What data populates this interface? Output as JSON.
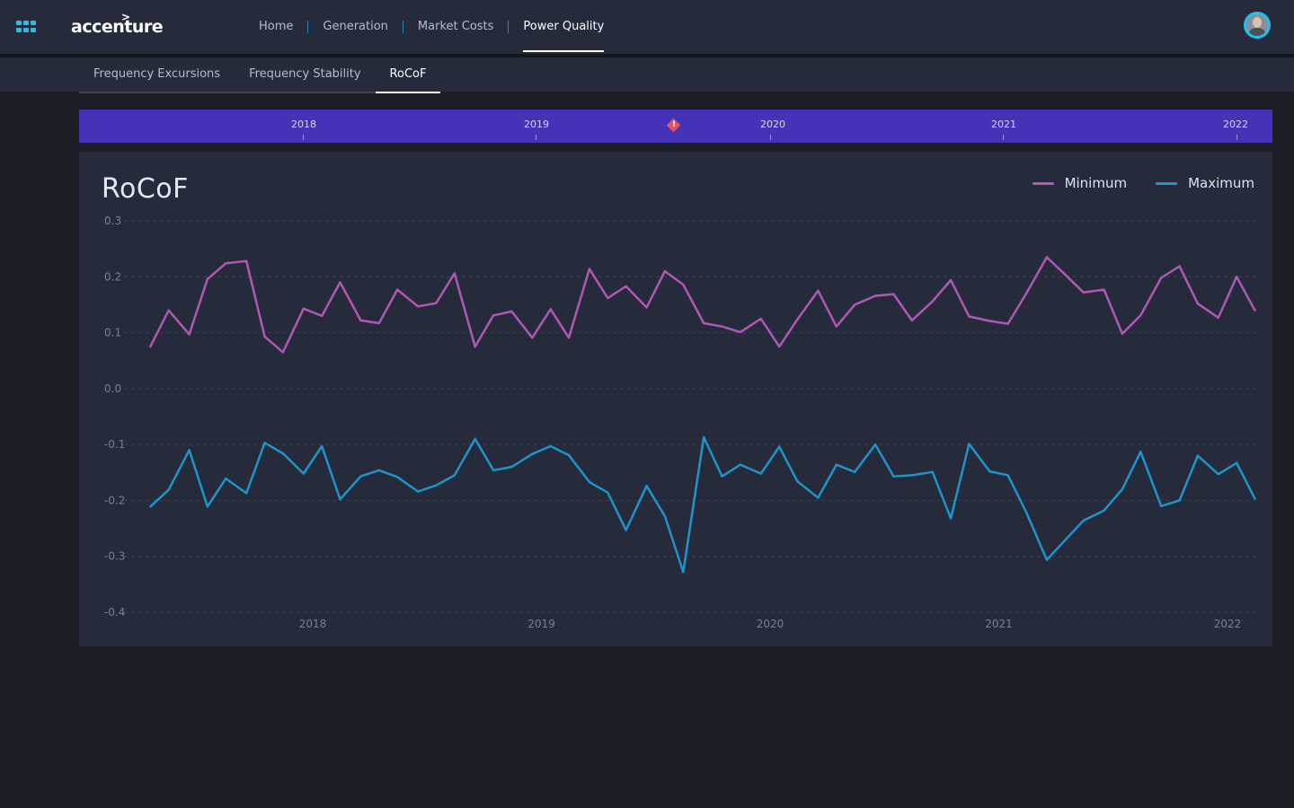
{
  "header": {
    "logo_text": "accenture",
    "nav": [
      {
        "label": "Home",
        "active": false
      },
      {
        "label": "Generation",
        "active": false
      },
      {
        "label": "Market Costs",
        "active": false
      },
      {
        "label": "Power Quality",
        "active": true
      }
    ],
    "icons": {
      "apps": "grid-icon",
      "avatar": "user-avatar"
    }
  },
  "subnav": {
    "tabs": [
      {
        "label": "Frequency Excursions",
        "active": false
      },
      {
        "label": "Frequency Stability",
        "active": false
      },
      {
        "label": "RoCoF",
        "active": true
      }
    ]
  },
  "timeline": {
    "labels": [
      "2018",
      "2019",
      "2020",
      "2021",
      "2022"
    ],
    "marker": {
      "year": 2019.56,
      "glyph": "!"
    }
  },
  "colors": {
    "accent": "#1fc2e8",
    "timeline": "#4433b6",
    "minimum": "#b157b4",
    "maximum": "#1f94cc",
    "alert": "#e8515a"
  },
  "chart_data": {
    "type": "line",
    "title": "RoCoF",
    "ylim": [
      -0.4,
      0.3
    ],
    "yticks": [
      0.3,
      0.2,
      0.1,
      0.0,
      -0.1,
      -0.2,
      -0.3,
      -0.4
    ],
    "ytick_labels": [
      "0.3",
      "0.2",
      "0.1",
      "0.0",
      "-0.1",
      "-0.2",
      "-0.3",
      "-0.4"
    ],
    "xlim": [
      2017.25,
      2022.12
    ],
    "xticks": [
      2018,
      2019,
      2020,
      2021,
      2022
    ],
    "xtick_labels": [
      "2018",
      "2019",
      "2020",
      "2021",
      "2022"
    ],
    "grid": true,
    "legend_position": "top-right",
    "series": [
      {
        "name": "Minimum",
        "points": [
          [
            2017.29,
            0.075
          ],
          [
            2017.37,
            0.14
          ],
          [
            2017.46,
            0.097
          ],
          [
            2017.54,
            0.196
          ],
          [
            2017.62,
            0.224
          ],
          [
            2017.71,
            0.228
          ],
          [
            2017.79,
            0.093
          ],
          [
            2017.87,
            0.065
          ],
          [
            2017.96,
            0.143
          ],
          [
            2018.04,
            0.13
          ],
          [
            2018.12,
            0.19
          ],
          [
            2018.21,
            0.122
          ],
          [
            2018.29,
            0.117
          ],
          [
            2018.37,
            0.177
          ],
          [
            2018.46,
            0.147
          ],
          [
            2018.54,
            0.153
          ],
          [
            2018.62,
            0.206
          ],
          [
            2018.71,
            0.075
          ],
          [
            2018.79,
            0.131
          ],
          [
            2018.87,
            0.138
          ],
          [
            2018.96,
            0.091
          ],
          [
            2019.04,
            0.142
          ],
          [
            2019.12,
            0.091
          ],
          [
            2019.21,
            0.214
          ],
          [
            2019.29,
            0.162
          ],
          [
            2019.37,
            0.183
          ],
          [
            2019.46,
            0.145
          ],
          [
            2019.54,
            0.21
          ],
          [
            2019.62,
            0.186
          ],
          [
            2019.71,
            0.117
          ],
          [
            2019.79,
            0.111
          ],
          [
            2019.87,
            0.101
          ],
          [
            2019.96,
            0.125
          ],
          [
            2020.04,
            0.075
          ],
          [
            2020.12,
            0.124
          ],
          [
            2020.21,
            0.175
          ],
          [
            2020.29,
            0.111
          ],
          [
            2020.37,
            0.15
          ],
          [
            2020.46,
            0.166
          ],
          [
            2020.54,
            0.169
          ],
          [
            2020.62,
            0.122
          ],
          [
            2020.71,
            0.156
          ],
          [
            2020.79,
            0.194
          ],
          [
            2020.87,
            0.129
          ],
          [
            2020.96,
            0.121
          ],
          [
            2021.04,
            0.116
          ],
          [
            2021.12,
            0.17
          ],
          [
            2021.21,
            0.235
          ],
          [
            2021.29,
            0.204
          ],
          [
            2021.37,
            0.172
          ],
          [
            2021.46,
            0.177
          ],
          [
            2021.54,
            0.098
          ],
          [
            2021.62,
            0.131
          ],
          [
            2021.71,
            0.198
          ],
          [
            2021.79,
            0.219
          ],
          [
            2021.87,
            0.152
          ],
          [
            2021.96,
            0.127
          ],
          [
            2022.04,
            0.2
          ],
          [
            2022.12,
            0.14
          ]
        ]
      },
      {
        "name": "Maximum",
        "points": [
          [
            2017.29,
            -0.211
          ],
          [
            2017.37,
            -0.181
          ],
          [
            2017.46,
            -0.11
          ],
          [
            2017.54,
            -0.211
          ],
          [
            2017.62,
            -0.161
          ],
          [
            2017.71,
            -0.187
          ],
          [
            2017.79,
            -0.097
          ],
          [
            2017.87,
            -0.116
          ],
          [
            2017.96,
            -0.152
          ],
          [
            2018.04,
            -0.103
          ],
          [
            2018.12,
            -0.198
          ],
          [
            2018.21,
            -0.157
          ],
          [
            2018.29,
            -0.146
          ],
          [
            2018.37,
            -0.158
          ],
          [
            2018.46,
            -0.184
          ],
          [
            2018.54,
            -0.173
          ],
          [
            2018.62,
            -0.155
          ],
          [
            2018.71,
            -0.09
          ],
          [
            2018.79,
            -0.146
          ],
          [
            2018.87,
            -0.14
          ],
          [
            2018.96,
            -0.117
          ],
          [
            2019.04,
            -0.103
          ],
          [
            2019.12,
            -0.119
          ],
          [
            2019.21,
            -0.167
          ],
          [
            2019.29,
            -0.186
          ],
          [
            2019.37,
            -0.253
          ],
          [
            2019.46,
            -0.174
          ],
          [
            2019.54,
            -0.228
          ],
          [
            2019.62,
            -0.328
          ],
          [
            2019.71,
            -0.087
          ],
          [
            2019.79,
            -0.157
          ],
          [
            2019.87,
            -0.136
          ],
          [
            2019.96,
            -0.152
          ],
          [
            2020.04,
            -0.104
          ],
          [
            2020.12,
            -0.166
          ],
          [
            2020.21,
            -0.195
          ],
          [
            2020.29,
            -0.136
          ],
          [
            2020.37,
            -0.149
          ],
          [
            2020.46,
            -0.1
          ],
          [
            2020.54,
            -0.157
          ],
          [
            2020.62,
            -0.155
          ],
          [
            2020.71,
            -0.149
          ],
          [
            2020.79,
            -0.232
          ],
          [
            2020.87,
            -0.099
          ],
          [
            2020.96,
            -0.148
          ],
          [
            2021.04,
            -0.155
          ],
          [
            2021.12,
            -0.221
          ],
          [
            2021.21,
            -0.306
          ],
          [
            2021.29,
            -0.271
          ],
          [
            2021.37,
            -0.236
          ],
          [
            2021.46,
            -0.218
          ],
          [
            2021.54,
            -0.18
          ],
          [
            2021.62,
            -0.113
          ],
          [
            2021.71,
            -0.21
          ],
          [
            2021.79,
            -0.2
          ],
          [
            2021.87,
            -0.12
          ],
          [
            2021.96,
            -0.153
          ],
          [
            2022.04,
            -0.133
          ],
          [
            2022.12,
            -0.197
          ]
        ]
      }
    ]
  }
}
